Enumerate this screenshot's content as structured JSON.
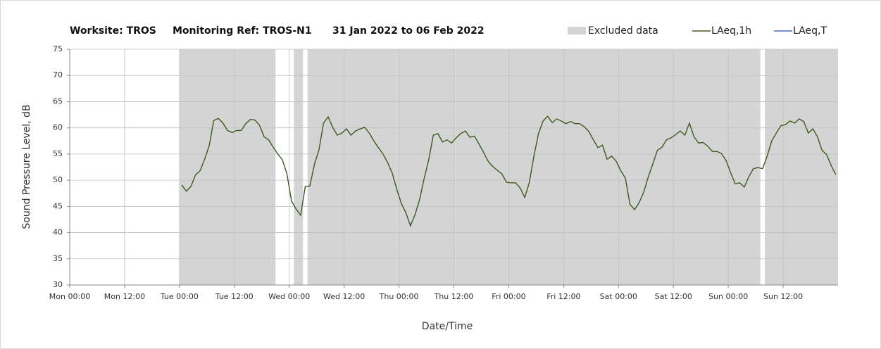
{
  "chart_data": {
    "type": "line",
    "title": "Worksite: TROS",
    "subtitle": "Monitoring Ref: TROS-N1",
    "period": "31 Jan 2022 to 06 Feb 2022",
    "x_label": "Date/Time",
    "y_label": "Sound Pressure Level, dB",
    "excluded_label": "Excluded data",
    "excluded_color": "#d4d4d4",
    "excluded": [
      [
        24,
        45
      ],
      [
        49,
        51
      ],
      [
        52,
        151
      ],
      [
        152,
        168
      ]
    ],
    "xlim": [
      0,
      168
    ],
    "xticks": [
      {
        "value": 0,
        "label": "Mon 00:00"
      },
      {
        "value": 12,
        "label": "Mon 12:00"
      },
      {
        "value": 24,
        "label": "Tue 00:00"
      },
      {
        "value": 36,
        "label": "Tue 12:00"
      },
      {
        "value": 48,
        "label": "Wed 00:00"
      },
      {
        "value": 60,
        "label": "Wed 12:00"
      },
      {
        "value": 72,
        "label": "Thu 00:00"
      },
      {
        "value": 84,
        "label": "Thu 12:00"
      },
      {
        "value": 96,
        "label": "Fri 00:00"
      },
      {
        "value": 108,
        "label": "Fri 12:00"
      },
      {
        "value": 120,
        "label": "Sat 00:00"
      },
      {
        "value": 132,
        "label": "Sat 12:00"
      },
      {
        "value": 144,
        "label": "Sun 00:00"
      },
      {
        "value": 156,
        "label": "Sun 12:00"
      }
    ],
    "ylim": [
      30,
      75
    ],
    "yticks": [
      30,
      35,
      40,
      45,
      50,
      55,
      60,
      65,
      70,
      75
    ],
    "grid": true,
    "x": [
      24.5,
      25.5,
      26.5,
      27.5,
      28.5,
      29.5,
      30.5,
      31.5,
      32.5,
      33.5,
      34.5,
      35.5,
      36.5,
      37.5,
      38.5,
      39.5,
      40.5,
      41.5,
      42.5,
      43.5,
      44.5,
      45.5,
      46.5,
      47.5,
      48.5,
      49.5,
      50.5,
      51.5,
      52.5,
      53.5,
      54.5,
      55.5,
      56.5,
      57.5,
      58.5,
      59.5,
      60.5,
      61.5,
      62.5,
      63.5,
      64.5,
      65.5,
      66.5,
      67.5,
      68.5,
      69.5,
      70.5,
      71.5,
      72.5,
      73.5,
      74.5,
      75.5,
      76.5,
      77.5,
      78.5,
      79.5,
      80.5,
      81.5,
      82.5,
      83.5,
      84.5,
      85.5,
      86.5,
      87.5,
      88.5,
      89.5,
      90.5,
      91.5,
      92.5,
      93.5,
      94.5,
      95.5,
      96.5,
      97.5,
      98.5,
      99.5,
      100.5,
      101.5,
      102.5,
      103.5,
      104.5,
      105.5,
      106.5,
      107.5,
      108.5,
      109.5,
      110.5,
      111.5,
      112.5,
      113.5,
      114.5,
      115.5,
      116.5,
      117.5,
      118.5,
      119.5,
      120.5,
      121.5,
      122.5,
      123.5,
      124.5,
      125.5,
      126.5,
      127.5,
      128.5,
      129.5,
      130.5,
      131.5,
      132.5,
      133.5,
      134.5,
      135.5,
      136.5,
      137.5,
      138.5,
      139.5,
      140.5,
      141.5,
      142.5,
      143.5,
      144.5,
      145.5,
      146.5,
      147.5,
      148.5,
      149.5,
      150.5,
      151.5,
      152.5,
      153.5,
      154.5,
      155.5,
      156.5,
      157.5,
      158.5,
      159.5,
      160.5,
      161.5,
      162.5,
      163.5,
      164.5,
      165.5,
      166.5,
      167.5
    ],
    "series": [
      {
        "name": "LAeq,1h",
        "color": "#3d5a1e",
        "values": [
          49.1,
          47.9,
          48.8,
          51,
          51.8,
          54,
          56.6,
          61.4,
          61.8,
          60.9,
          59.5,
          59.1,
          59.5,
          59.5,
          60.8,
          61.6,
          61.5,
          60.5,
          58.3,
          57.7,
          56.3,
          55,
          53.9,
          51.2,
          46,
          44.5,
          43.3,
          48.8,
          48.9,
          53,
          55.8,
          60.9,
          62.1,
          60.1,
          58.6,
          59,
          59.8,
          58.6,
          59.4,
          59.8,
          60.1,
          59,
          57.5,
          56.2,
          55,
          53.4,
          51.4,
          48.3,
          45.6,
          43.8,
          41.3,
          43.4,
          46.3,
          50.3,
          53.9,
          58.6,
          58.9,
          57.3,
          57.7,
          57.1,
          58.1,
          58.9,
          59.4,
          58.2,
          58.4,
          56.9,
          55.3,
          53.6,
          52.6,
          51.9,
          51.2,
          49.6,
          49.5,
          49.5,
          48.5,
          46.7,
          49.6,
          54.6,
          58.9,
          61.3,
          62.2,
          61,
          61.7,
          61.3,
          60.8,
          61.2,
          60.8,
          60.8,
          60.2,
          59.3,
          57.7,
          56.2,
          56.7,
          54,
          54.6,
          53.6,
          51.8,
          50.4,
          45.4,
          44.4,
          45.7,
          47.7,
          50.6,
          53.1,
          55.7,
          56.3,
          57.7,
          58.1,
          58.7,
          59.4,
          58.6,
          60.9,
          58.3,
          57.1,
          57.2,
          56.5,
          55.5,
          55.5,
          55.1,
          53.8,
          51.5,
          49.3,
          49.5,
          48.7,
          50.7,
          52.2,
          52.4,
          52.2,
          54.6,
          57.5,
          59,
          60.4,
          60.6,
          61.3,
          60.9,
          61.7,
          61.2,
          59,
          59.8,
          58.3,
          55.7,
          54.9,
          52.8,
          51.1
        ]
      },
      {
        "name": "LAeq,T",
        "color": "#4a6fb5"
      }
    ]
  }
}
